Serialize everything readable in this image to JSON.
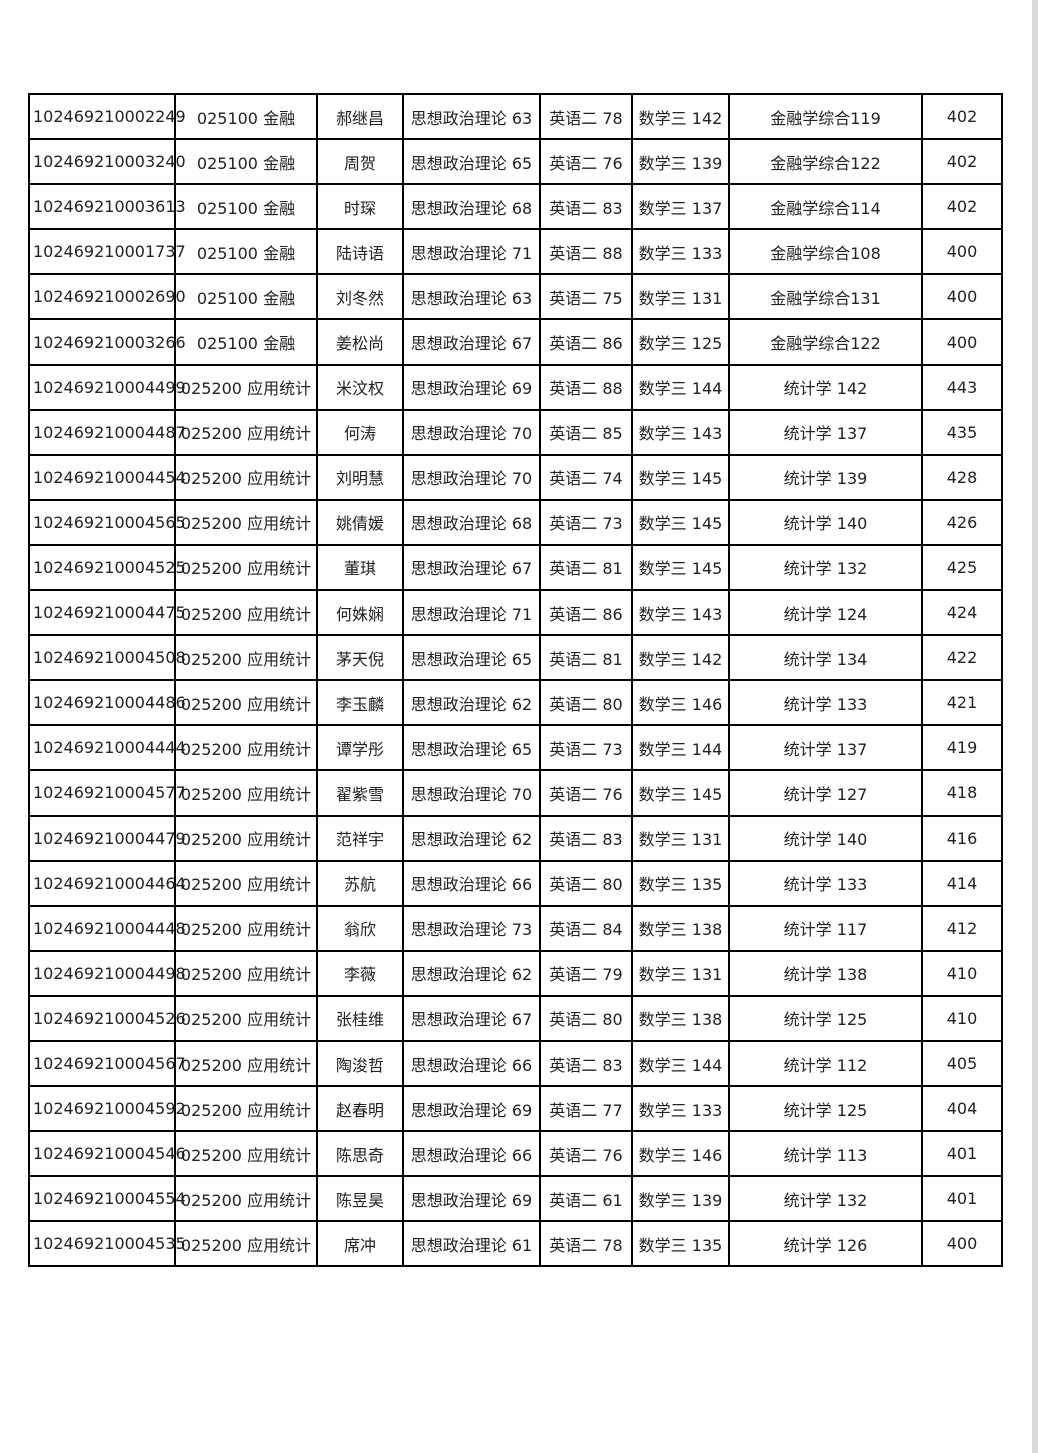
{
  "table": {
    "rows": [
      [
        "102469210002249",
        "025100 金融",
        "郝继昌",
        "思想政治理论 63",
        "英语二 78",
        "数学三 142",
        "金融学综合119",
        "402"
      ],
      [
        "102469210003240",
        "025100 金融",
        "周贺",
        "思想政治理论 65",
        "英语二 76",
        "数学三 139",
        "金融学综合122",
        "402"
      ],
      [
        "102469210003613",
        "025100 金融",
        "时琛",
        "思想政治理论 68",
        "英语二 83",
        "数学三 137",
        "金融学综合114",
        "402"
      ],
      [
        "102469210001737",
        "025100 金融",
        "陆诗语",
        "思想政治理论 71",
        "英语二 88",
        "数学三 133",
        "金融学综合108",
        "400"
      ],
      [
        "102469210002690",
        "025100 金融",
        "刘冬然",
        "思想政治理论 63",
        "英语二 75",
        "数学三 131",
        "金融学综合131",
        "400"
      ],
      [
        "102469210003266",
        "025100 金融",
        "姜松尚",
        "思想政治理论 67",
        "英语二 86",
        "数学三 125",
        "金融学综合122",
        "400"
      ],
      [
        "102469210004499",
        "025200 应用统计",
        "米汶权",
        "思想政治理论 69",
        "英语二 88",
        "数学三 144",
        "统计学 142",
        "443"
      ],
      [
        "102469210004487",
        "025200 应用统计",
        "何涛",
        "思想政治理论 70",
        "英语二 85",
        "数学三 143",
        "统计学 137",
        "435"
      ],
      [
        "102469210004454",
        "025200 应用统计",
        "刘明慧",
        "思想政治理论 70",
        "英语二 74",
        "数学三 145",
        "统计学 139",
        "428"
      ],
      [
        "102469210004565",
        "025200 应用统计",
        "姚倩媛",
        "思想政治理论 68",
        "英语二 73",
        "数学三 145",
        "统计学 140",
        "426"
      ],
      [
        "102469210004525",
        "025200 应用统计",
        "董琪",
        "思想政治理论 67",
        "英语二 81",
        "数学三 145",
        "统计学 132",
        "425"
      ],
      [
        "102469210004475",
        "025200 应用统计",
        "何姝娴",
        "思想政治理论 71",
        "英语二 86",
        "数学三 143",
        "统计学 124",
        "424"
      ],
      [
        "102469210004508",
        "025200 应用统计",
        "茅天倪",
        "思想政治理论 65",
        "英语二 81",
        "数学三 142",
        "统计学 134",
        "422"
      ],
      [
        "102469210004486",
        "025200 应用统计",
        "李玉麟",
        "思想政治理论 62",
        "英语二 80",
        "数学三 146",
        "统计学 133",
        "421"
      ],
      [
        "102469210004444",
        "025200 应用统计",
        "谭学彤",
        "思想政治理论 65",
        "英语二 73",
        "数学三 144",
        "统计学 137",
        "419"
      ],
      [
        "102469210004577",
        "025200 应用统计",
        "翟紫雪",
        "思想政治理论 70",
        "英语二 76",
        "数学三 145",
        "统计学 127",
        "418"
      ],
      [
        "102469210004479",
        "025200 应用统计",
        "范祥宇",
        "思想政治理论 62",
        "英语二 83",
        "数学三 131",
        "统计学 140",
        "416"
      ],
      [
        "102469210004464",
        "025200 应用统计",
        "苏航",
        "思想政治理论 66",
        "英语二 80",
        "数学三 135",
        "统计学 133",
        "414"
      ],
      [
        "102469210004448",
        "025200 应用统计",
        "翁欣",
        "思想政治理论 73",
        "英语二 84",
        "数学三 138",
        "统计学 117",
        "412"
      ],
      [
        "102469210004498",
        "025200 应用统计",
        "李薇",
        "思想政治理论 62",
        "英语二 79",
        "数学三 131",
        "统计学 138",
        "410"
      ],
      [
        "102469210004526",
        "025200 应用统计",
        "张桂维",
        "思想政治理论 67",
        "英语二 80",
        "数学三 138",
        "统计学 125",
        "410"
      ],
      [
        "102469210004567",
        "025200 应用统计",
        "陶浚哲",
        "思想政治理论 66",
        "英语二 83",
        "数学三 144",
        "统计学 112",
        "405"
      ],
      [
        "102469210004592",
        "025200 应用统计",
        "赵春明",
        "思想政治理论 69",
        "英语二 77",
        "数学三 133",
        "统计学 125",
        "404"
      ],
      [
        "102469210004546",
        "025200 应用统计",
        "陈思奇",
        "思想政治理论 66",
        "英语二 76",
        "数学三 146",
        "统计学 113",
        "401"
      ],
      [
        "102469210004554",
        "025200 应用统计",
        "陈昱昊",
        "思想政治理论 69",
        "英语二 61",
        "数学三 139",
        "统计学 132",
        "401"
      ],
      [
        "102469210004535",
        "025200 应用统计",
        "席冲",
        "思想政治理论 61",
        "英语二 78",
        "数学三 135",
        "统计学 126",
        "400"
      ]
    ]
  }
}
